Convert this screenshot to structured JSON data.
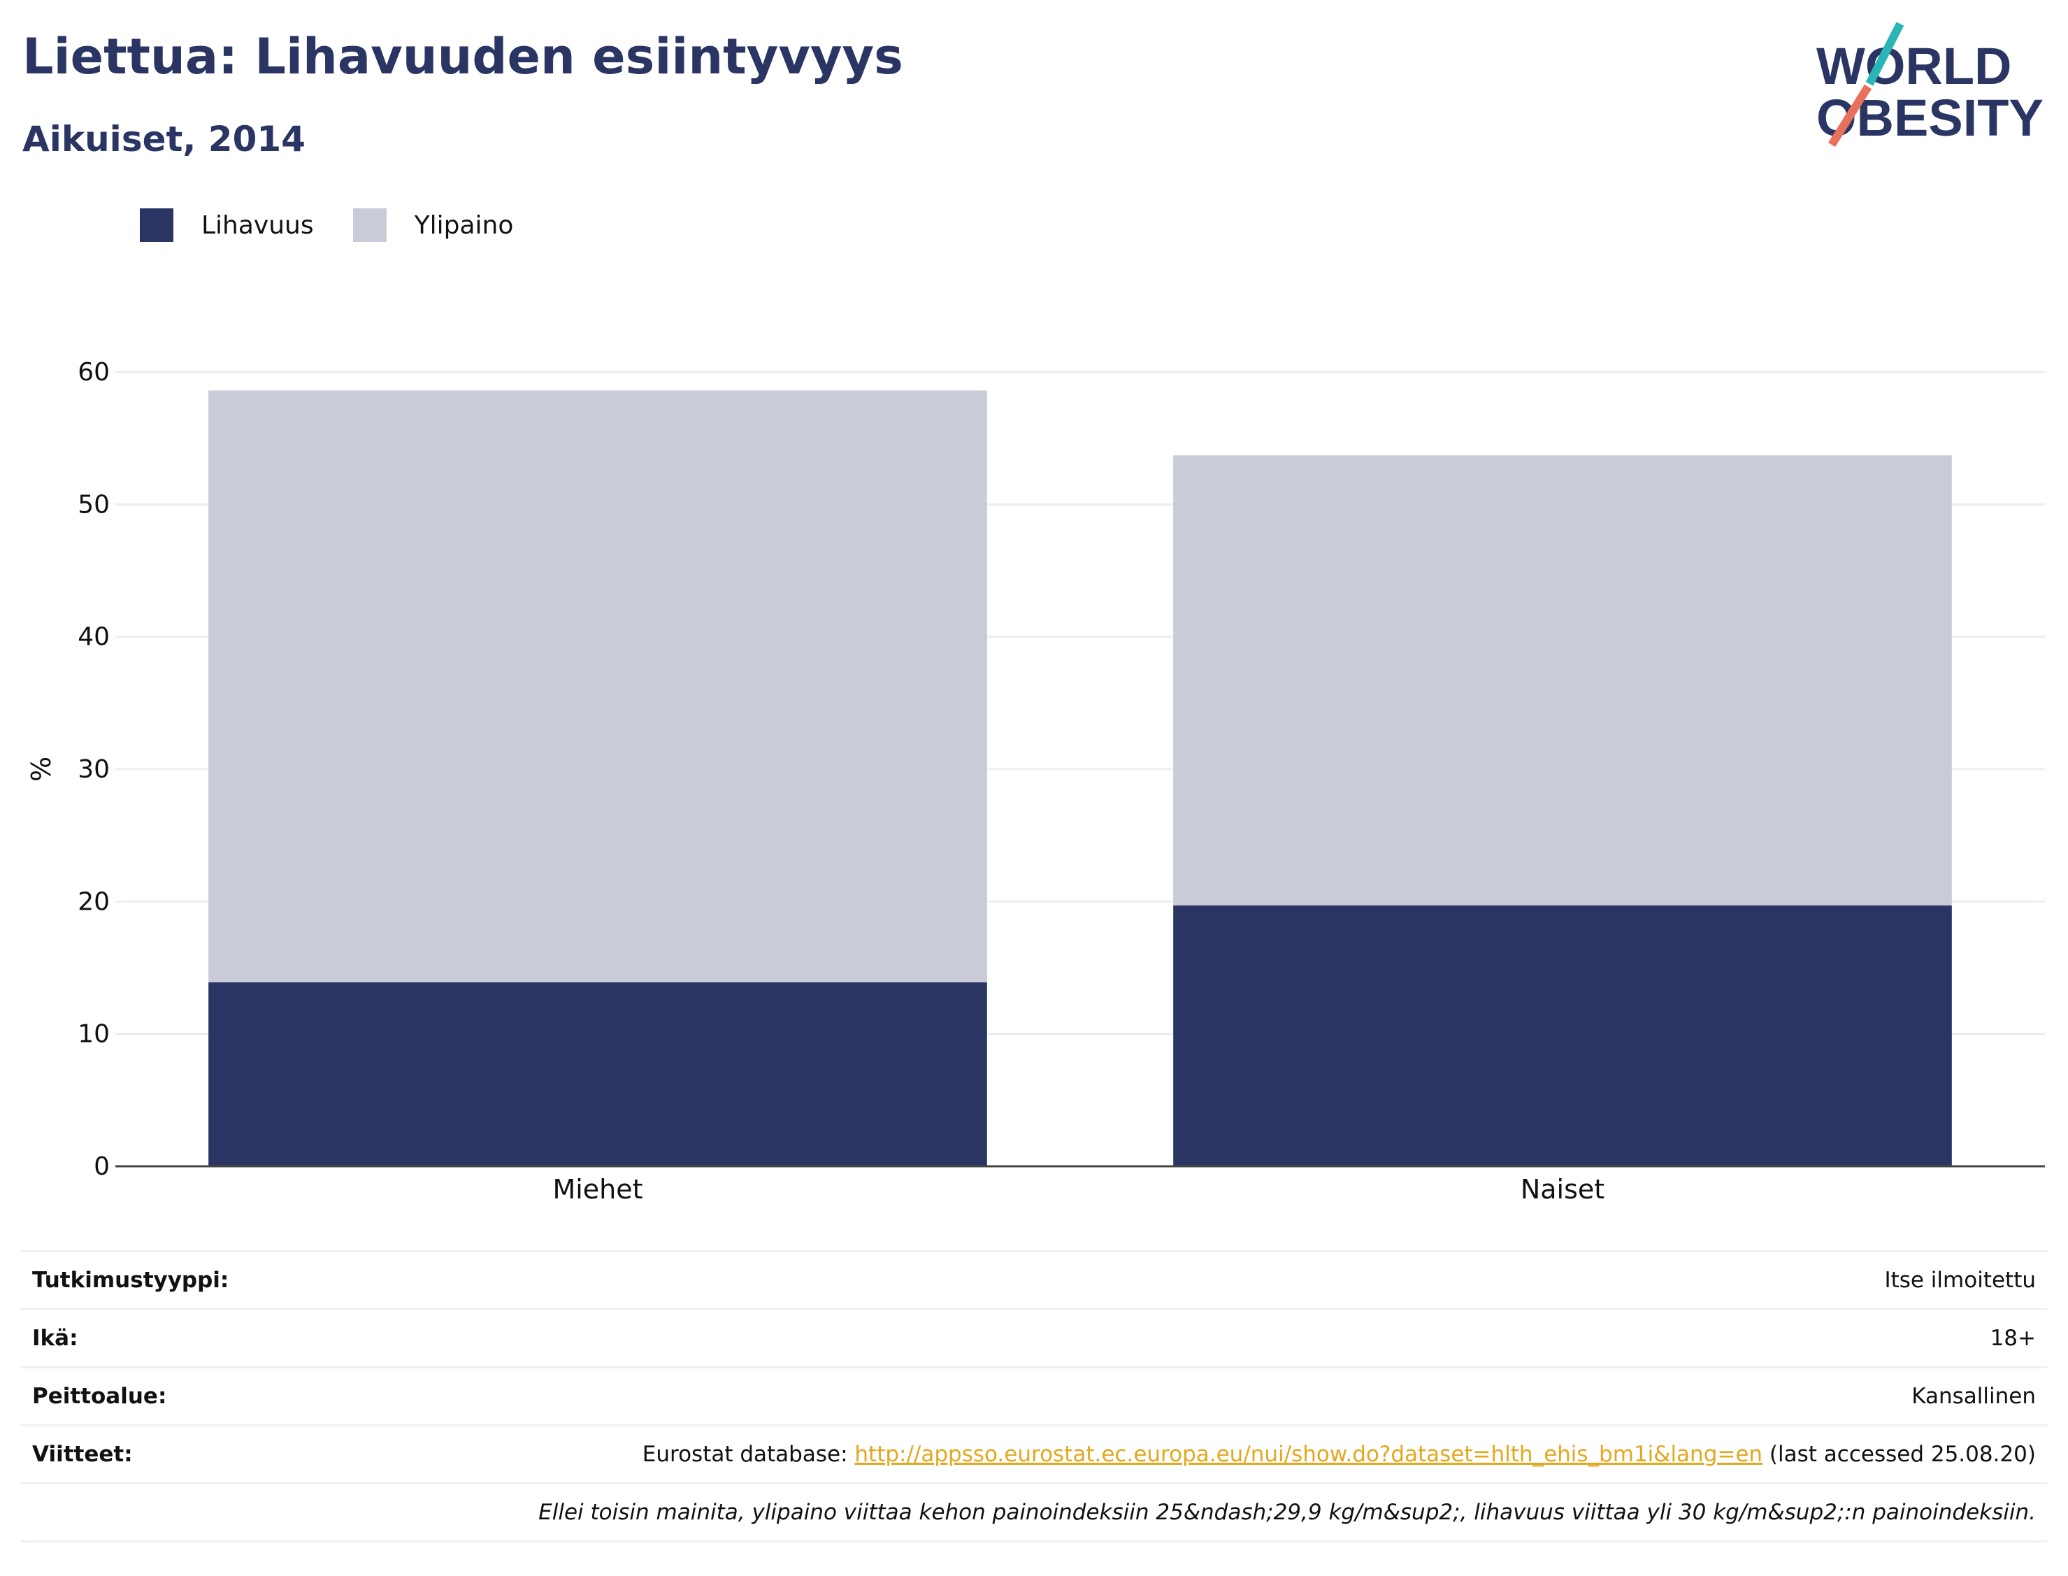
{
  "header": {
    "title": "Liettua: Lihavuuden esiintyvyys",
    "subtitle": "Aikuiset, 2014"
  },
  "logo": {
    "line1": "WORLD",
    "line2": "OBESITY",
    "accent_colors": [
      "#2cb5b8",
      "#e8705c"
    ]
  },
  "colors": {
    "obesity": "#2a3564",
    "overweight": "#c9ccd8",
    "title": "#2a3564",
    "link": "#e3a81f"
  },
  "chart_data": {
    "type": "bar",
    "stacked": true,
    "categories": [
      "Miehet",
      "Naiset"
    ],
    "series": [
      {
        "name": "Lihavuus",
        "values": [
          13.9,
          19.7
        ],
        "color": "#2a3564"
      },
      {
        "name": "Ylipaino",
        "values": [
          44.7,
          34.0
        ],
        "color": "#c9ccd8"
      }
    ],
    "ylabel": "%",
    "xlabel": "",
    "ylim": [
      0,
      60
    ],
    "yticks": [
      0,
      10,
      20,
      30,
      40,
      50,
      60
    ],
    "grid": true,
    "legend": "top-left"
  },
  "info": {
    "rows": [
      {
        "key": "Tutkimustyyppi:",
        "value": "Itse ilmoitettu"
      },
      {
        "key": "Ikä:",
        "value": "18+"
      },
      {
        "key": "Peittoalue:",
        "value": "Kansallinen"
      }
    ],
    "references": {
      "key": "Viitteet:",
      "prefix": "Eurostat database: ",
      "link": "http://appsso.eurostat.ec.europa.eu/nui/show.do?dataset=hlth_ehis_bm1i&lang=en",
      "suffix": " (last accessed 25.08.20)"
    },
    "note": "Ellei toisin mainita, ylipaino viittaa kehon painoindeksiin 25&ndash;29,9 kg/m&sup2;, lihavuus viittaa yli 30 kg/m&sup2;:n painoindeksiin."
  }
}
